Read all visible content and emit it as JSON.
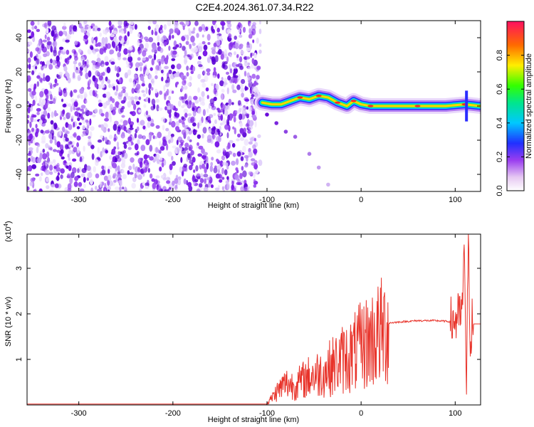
{
  "title": "C2E4.2024.361.07.34.R22",
  "colors": {
    "line": "#e8332a",
    "scatter": "#6a0bd9",
    "axis": "#000000"
  },
  "chart_data": [
    {
      "type": "heatmap",
      "title": "C2E4.2024.361.07.34.R22",
      "xlabel": "Height of straight line (km)",
      "ylabel": "Frequency (Hz)",
      "xlim": [
        -355,
        127
      ],
      "ylim": [
        -50,
        50
      ],
      "xticks": [
        -300,
        -200,
        -100,
        0,
        100
      ],
      "yticks": [
        -40,
        -20,
        0,
        20,
        40
      ],
      "noise_region": {
        "x": [
          -355,
          -107
        ],
        "y": [
          -50,
          50
        ]
      },
      "signal_trace": [
        {
          "x": -105,
          "y": 2
        },
        {
          "x": -95,
          "y": 1
        },
        {
          "x": -85,
          "y": 1
        },
        {
          "x": -75,
          "y": 3
        },
        {
          "x": -65,
          "y": 5
        },
        {
          "x": -55,
          "y": 4
        },
        {
          "x": -45,
          "y": 6
        },
        {
          "x": -35,
          "y": 5
        },
        {
          "x": -25,
          "y": 2
        },
        {
          "x": -15,
          "y": 0
        },
        {
          "x": -8,
          "y": 3
        },
        {
          "x": 0,
          "y": 1
        },
        {
          "x": 10,
          "y": 0
        },
        {
          "x": 30,
          "y": 0
        },
        {
          "x": 60,
          "y": 0
        },
        {
          "x": 90,
          "y": 0
        },
        {
          "x": 110,
          "y": 1
        },
        {
          "x": 127,
          "y": 0
        }
      ],
      "echo_arc": [
        {
          "x": -100,
          "y": -5
        },
        {
          "x": -90,
          "y": -10
        },
        {
          "x": -80,
          "y": -15
        },
        {
          "x": -70,
          "y": -18
        },
        {
          "x": -55,
          "y": -28
        },
        {
          "x": -45,
          "y": -36
        },
        {
          "x": -35,
          "y": -46
        }
      ],
      "colorbar": {
        "label": "Normalized spectral amplitude",
        "range": [
          0,
          1
        ],
        "ticks": [
          0.0,
          0.2,
          0.4,
          0.6,
          0.8
        ],
        "tick_labels": [
          "0.0",
          "0.2",
          "0.4",
          "0.6",
          "0.8"
        ]
      }
    },
    {
      "type": "line",
      "xlabel": "Height of straight line (km)",
      "ylabel": "SNR (10 * v/v)",
      "exponent_label": "(x10",
      "exponent_power": "4",
      "exponent_close": ")",
      "xlim": [
        -355,
        127
      ],
      "ylim": [
        0,
        3.75
      ],
      "xticks": [
        -300,
        -200,
        -100,
        0,
        100
      ],
      "yticks": [
        1,
        2,
        3
      ],
      "grid": false,
      "series": [
        {
          "x": [
            -355,
            -100,
            -90,
            -80,
            -70,
            -60,
            -50,
            -40,
            -30,
            -20,
            -10,
            0,
            10,
            20,
            30,
            40,
            60,
            80,
            95,
            100,
            105,
            108,
            110,
            112,
            114,
            116,
            118,
            120,
            127
          ],
          "y": [
            0.02,
            0.02,
            0.3,
            0.5,
            0.45,
            0.6,
            0.7,
            0.75,
            0.9,
            1.05,
            1.15,
            1.35,
            1.5,
            1.65,
            1.8,
            1.82,
            1.85,
            1.85,
            1.83,
            1.87,
            1.9,
            2.2,
            3.4,
            0.3,
            3.7,
            1.5,
            1.8,
            1.78,
            1.78
          ]
        }
      ]
    }
  ]
}
